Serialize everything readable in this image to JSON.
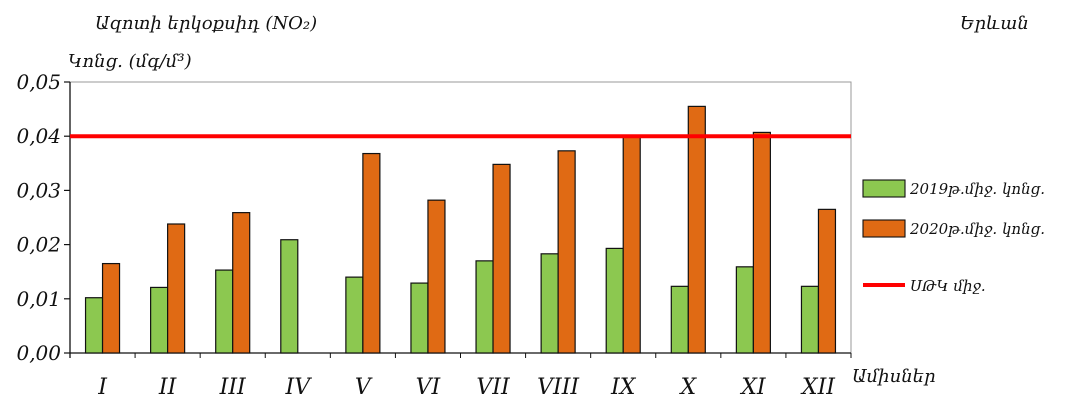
{
  "chart_data": {
    "type": "bar",
    "title": "Ազոտի երկօքսիդ (NO₂)",
    "location": "Երևան",
    "ylabel": "Կոնց. (մգ/մ³)",
    "xlabel": "Ամիսներ",
    "categories": [
      "I",
      "II",
      "III",
      "IV",
      "V",
      "VI",
      "VII",
      "VIII",
      "IX",
      "X",
      "XI",
      "XII"
    ],
    "ylim": [
      0,
      0.05
    ],
    "yticks": [
      "0,00",
      "0,01",
      "0,02",
      "0,03",
      "0,04",
      "0,05"
    ],
    "series": [
      {
        "name": "2019թ.միջ. կոնց.",
        "color": "#8cc850",
        "values": [
          0.0102,
          0.0121,
          0.0153,
          0.0209,
          0.014,
          0.0129,
          0.017,
          0.0183,
          0.0193,
          0.0123,
          0.0159,
          0.0123
        ]
      },
      {
        "name": "2020թ.միջ. կոնց.",
        "color": "#e06a14",
        "values": [
          0.0165,
          0.0238,
          0.0259,
          null,
          0.0368,
          0.0282,
          0.0348,
          0.0373,
          0.04,
          0.0455,
          0.0407,
          0.0265
        ]
      }
    ],
    "reference_line": {
      "name": "ՍԹԿ միջ.",
      "value": 0.04,
      "color": "#ff0000"
    },
    "legend_position": "right",
    "grid": false
  }
}
